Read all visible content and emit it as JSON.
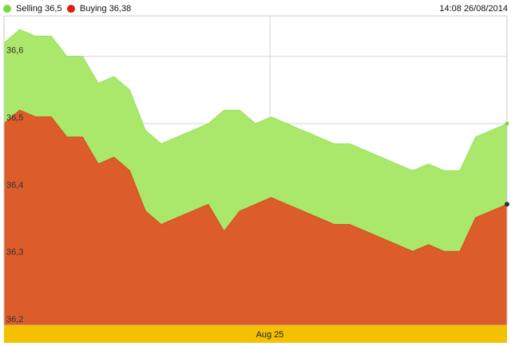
{
  "legend": {
    "selling": {
      "label": "Selling 36,5",
      "color": "#7cd93a"
    },
    "buying": {
      "label": "Buying 36,38",
      "color": "#e0210a"
    }
  },
  "timestamp": "14:08 26/08/2014",
  "chart_data": {
    "type": "area",
    "title": "",
    "xlabel": "Aug 25",
    "ylabel": "",
    "ylim": [
      36.2,
      36.66
    ],
    "yticks": [
      "36,2",
      "36,3",
      "36,4",
      "36,5",
      "36,6"
    ],
    "grid": true,
    "x": [
      0,
      1,
      2,
      3,
      4,
      5,
      6,
      7,
      8,
      9,
      10,
      11,
      12,
      13,
      14,
      15,
      16,
      17,
      18,
      19,
      20,
      21,
      22,
      23,
      24,
      25,
      26,
      27,
      28,
      29,
      30,
      31,
      32
    ],
    "series": [
      {
        "name": "Selling",
        "color": "#a9e86a",
        "line_color": "#7cd93a",
        "values": [
          36.62,
          36.64,
          36.63,
          36.63,
          36.6,
          36.6,
          36.56,
          36.57,
          36.55,
          36.49,
          36.47,
          36.48,
          36.49,
          36.5,
          36.52,
          36.52,
          36.5,
          36.51,
          36.5,
          36.49,
          36.48,
          36.47,
          36.47,
          36.46,
          36.45,
          36.44,
          36.43,
          36.44,
          36.43,
          36.43,
          36.48,
          36.49,
          36.5
        ]
      },
      {
        "name": "Buying",
        "color": "#dc5c2a",
        "line_color": "#e0210a",
        "values": [
          36.5,
          36.52,
          36.51,
          36.51,
          36.48,
          36.48,
          36.44,
          36.45,
          36.43,
          36.37,
          36.35,
          36.36,
          36.37,
          36.38,
          36.34,
          36.37,
          36.38,
          36.39,
          36.38,
          36.37,
          36.36,
          36.35,
          36.35,
          36.34,
          36.33,
          36.32,
          36.31,
          36.32,
          36.31,
          36.31,
          36.36,
          36.37,
          36.38
        ]
      }
    ]
  }
}
